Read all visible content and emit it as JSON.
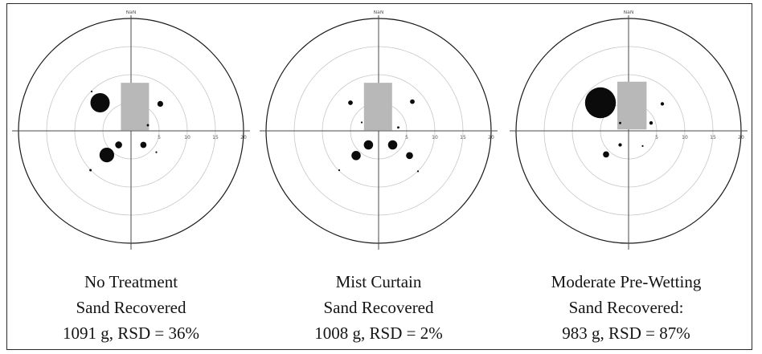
{
  "figure": {
    "panels": [
      {
        "id": "no-treatment",
        "title": "No Treatment",
        "subtitle": "Sand Recovered",
        "result": "1091 g, RSD = 36%",
        "top_label": "NaN",
        "ring_labels": [
          "5",
          "10",
          "15",
          "20"
        ],
        "nozzle": {
          "x": 0.7,
          "y": 4.3,
          "w": 5.0,
          "h": 8.5
        },
        "samples": [
          {
            "x": -5.5,
            "y": 5.0,
            "size": 5.0
          },
          {
            "x": 5.2,
            "y": 4.8,
            "size": 1.5
          },
          {
            "x": 3.0,
            "y": 1.0,
            "size": 0.6
          },
          {
            "x": -2.2,
            "y": -2.5,
            "size": 1.8
          },
          {
            "x": 2.2,
            "y": -2.5,
            "size": 1.6
          },
          {
            "x": -4.3,
            "y": -4.3,
            "size": 3.8
          },
          {
            "x": -7.2,
            "y": -7.0,
            "size": 0.6
          },
          {
            "x": -7.0,
            "y": 7.0,
            "size": 0.3
          },
          {
            "x": 4.5,
            "y": -3.8,
            "size": 0.3
          }
        ]
      },
      {
        "id": "mist-curtain",
        "title": "Mist Curtain",
        "subtitle": "Sand Recovered",
        "result": "1008 g, RSD = 2%",
        "top_label": "NaN",
        "ring_labels": [
          "5",
          "10",
          "15",
          "20"
        ],
        "nozzle": {
          "x": -0.1,
          "y": 4.3,
          "w": 5.0,
          "h": 8.5
        },
        "samples": [
          {
            "x": -5.0,
            "y": 5.0,
            "size": 1.2
          },
          {
            "x": 6.0,
            "y": 5.2,
            "size": 1.2
          },
          {
            "x": 3.5,
            "y": 0.6,
            "size": 0.6
          },
          {
            "x": -1.8,
            "y": -2.5,
            "size": 2.4
          },
          {
            "x": 2.5,
            "y": -2.5,
            "size": 2.4
          },
          {
            "x": -4.0,
            "y": -4.4,
            "size": 2.4
          },
          {
            "x": 5.5,
            "y": -4.4,
            "size": 1.8
          },
          {
            "x": -3.0,
            "y": 1.5,
            "size": 0.3
          },
          {
            "x": -7.0,
            "y": -7.0,
            "size": 0.3
          },
          {
            "x": 7.0,
            "y": -7.2,
            "size": 0.3
          }
        ]
      },
      {
        "id": "moderate-pre-wetting",
        "title": "Moderate Pre-Wetting",
        "subtitle": "Sand Recovered:",
        "result": "983 g, RSD = 87%",
        "top_label": "NaN",
        "ring_labels": [
          "5",
          "10",
          "15",
          "20"
        ],
        "nozzle": {
          "x": 0.6,
          "y": 4.5,
          "w": 5.2,
          "h": 8.5
        },
        "samples": [
          {
            "x": -5.0,
            "y": 5.0,
            "size": 8.0
          },
          {
            "x": 6.0,
            "y": 4.8,
            "size": 0.9
          },
          {
            "x": 4.0,
            "y": 1.4,
            "size": 0.9
          },
          {
            "x": -1.5,
            "y": 1.4,
            "size": 0.6
          },
          {
            "x": -1.5,
            "y": -2.5,
            "size": 0.9
          },
          {
            "x": -4.0,
            "y": -4.2,
            "size": 1.6
          },
          {
            "x": 2.5,
            "y": -2.7,
            "size": 0.3
          }
        ]
      }
    ],
    "colors": {
      "axis": "#4a4a4a",
      "ring": "#c6c6c6",
      "outer_ring": "#1a1a1a",
      "nozzle": "#b8b8b8",
      "sample": "#0b0b0b"
    }
  }
}
